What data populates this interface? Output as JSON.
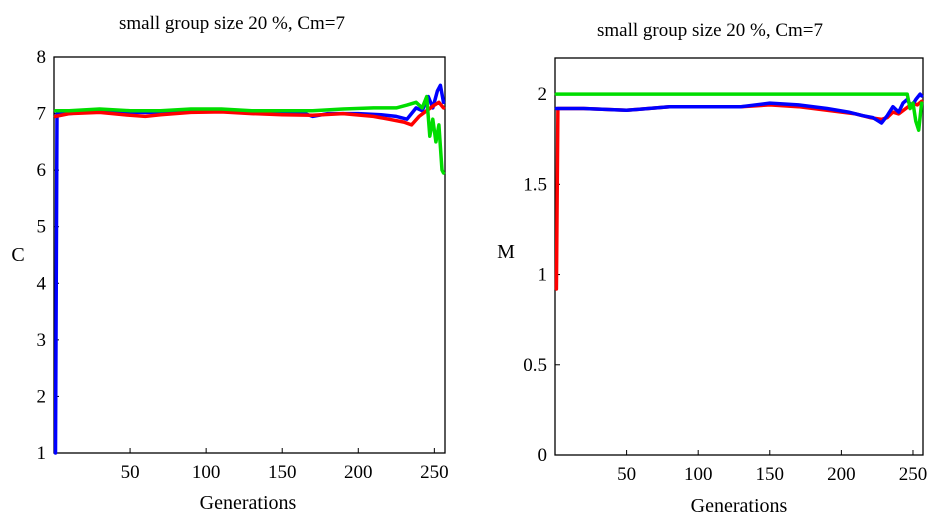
{
  "charts": [
    {
      "id": "C",
      "title": "small group size 20 %, Cm=7",
      "xlabel": "Generations",
      "ylabel": "C",
      "xticks": [
        "50",
        "100",
        "150",
        "200",
        "250"
      ],
      "yticks": [
        "1",
        "2",
        "3",
        "4",
        "5",
        "6",
        "7",
        "8"
      ]
    },
    {
      "id": "M",
      "title": "small group size 20 %, Cm=7",
      "xlabel": "Generations",
      "ylabel": "M",
      "xticks": [
        "50",
        "100",
        "150",
        "200",
        "250"
      ],
      "yticks": [
        "0",
        "0.5",
        "1",
        "1.5",
        "2"
      ]
    }
  ],
  "chart_data": [
    {
      "type": "line",
      "title": "small group size 20 %, Cm=7",
      "xlabel": "Generations",
      "ylabel": "C",
      "xlim": [
        0,
        257
      ],
      "ylim": [
        1,
        8
      ],
      "xticks": [
        50,
        100,
        150,
        200,
        250
      ],
      "yticks": [
        1,
        2,
        3,
        4,
        5,
        6,
        7,
        8
      ],
      "grid": false,
      "series": [
        {
          "color": "#0000ff",
          "points": [
            [
              1,
              1.0
            ],
            [
              2,
              7.0
            ],
            [
              10,
              7.0
            ],
            [
              30,
              7.05
            ],
            [
              50,
              7.02
            ],
            [
              70,
              7.02
            ],
            [
              90,
              7.05
            ],
            [
              110,
              7.05
            ],
            [
              130,
              7.02
            ],
            [
              150,
              7.0
            ],
            [
              165,
              7.0
            ],
            [
              170,
              6.95
            ],
            [
              180,
              7.0
            ],
            [
              200,
              7.0
            ],
            [
              215,
              6.98
            ],
            [
              225,
              6.95
            ],
            [
              232,
              6.9
            ],
            [
              238,
              7.1
            ],
            [
              242,
              7.05
            ],
            [
              246,
              7.3
            ],
            [
              249,
              7.1
            ],
            [
              252,
              7.4
            ],
            [
              254,
              7.5
            ],
            [
              256,
              7.2
            ]
          ]
        },
        {
          "color": "#ff0000",
          "points": [
            [
              1,
              6.95
            ],
            [
              10,
              7.0
            ],
            [
              30,
              7.02
            ],
            [
              50,
              6.97
            ],
            [
              60,
              6.95
            ],
            [
              70,
              6.98
            ],
            [
              90,
              7.02
            ],
            [
              110,
              7.03
            ],
            [
              130,
              7.0
            ],
            [
              150,
              6.98
            ],
            [
              170,
              6.97
            ],
            [
              190,
              7.0
            ],
            [
              210,
              6.95
            ],
            [
              220,
              6.9
            ],
            [
              230,
              6.85
            ],
            [
              235,
              6.8
            ],
            [
              240,
              6.95
            ],
            [
              245,
              7.05
            ],
            [
              250,
              7.15
            ],
            [
              253,
              7.2
            ],
            [
              256,
              7.1
            ]
          ]
        },
        {
          "color": "#00dd00",
          "points": [
            [
              1,
              7.05
            ],
            [
              10,
              7.05
            ],
            [
              30,
              7.08
            ],
            [
              50,
              7.05
            ],
            [
              70,
              7.05
            ],
            [
              90,
              7.08
            ],
            [
              110,
              7.08
            ],
            [
              130,
              7.05
            ],
            [
              150,
              7.05
            ],
            [
              170,
              7.05
            ],
            [
              190,
              7.08
            ],
            [
              210,
              7.1
            ],
            [
              225,
              7.1
            ],
            [
              232,
              7.15
            ],
            [
              238,
              7.2
            ],
            [
              242,
              7.1
            ],
            [
              245,
              7.3
            ],
            [
              247,
              6.6
            ],
            [
              249,
              6.9
            ],
            [
              251,
              6.5
            ],
            [
              253,
              6.8
            ],
            [
              255,
              6.0
            ],
            [
              256,
              5.95
            ]
          ]
        }
      ]
    },
    {
      "type": "line",
      "title": "small group size 20 %, Cm=7",
      "xlabel": "Generations",
      "ylabel": "M",
      "xlim": [
        0,
        257
      ],
      "ylim": [
        0,
        2.2
      ],
      "xticks": [
        50,
        100,
        150,
        200,
        250
      ],
      "yticks": [
        0,
        0.5,
        1,
        1.5,
        2
      ],
      "grid": false,
      "series": [
        {
          "color": "#ff0000",
          "points": [
            [
              1,
              0.92
            ],
            [
              2,
              1.92
            ],
            [
              20,
              1.92
            ],
            [
              50,
              1.91
            ],
            [
              80,
              1.93
            ],
            [
              110,
              1.93
            ],
            [
              130,
              1.93
            ],
            [
              150,
              1.94
            ],
            [
              170,
              1.93
            ],
            [
              190,
              1.91
            ],
            [
              210,
              1.89
            ],
            [
              220,
              1.87
            ],
            [
              228,
              1.86
            ],
            [
              232,
              1.87
            ],
            [
              236,
              1.9
            ],
            [
              240,
              1.89
            ],
            [
              245,
              1.92
            ],
            [
              250,
              1.95
            ],
            [
              253,
              1.94
            ],
            [
              256,
              1.96
            ]
          ]
        },
        {
          "color": "#0000ff",
          "points": [
            [
              1,
              1.92
            ],
            [
              20,
              1.92
            ],
            [
              50,
              1.91
            ],
            [
              80,
              1.93
            ],
            [
              110,
              1.93
            ],
            [
              130,
              1.93
            ],
            [
              150,
              1.95
            ],
            [
              170,
              1.94
            ],
            [
              190,
              1.92
            ],
            [
              205,
              1.9
            ],
            [
              215,
              1.88
            ],
            [
              222,
              1.87
            ],
            [
              226,
              1.85
            ],
            [
              228,
              1.84
            ],
            [
              232,
              1.88
            ],
            [
              236,
              1.93
            ],
            [
              240,
              1.9
            ],
            [
              243,
              1.95
            ],
            [
              246,
              1.97
            ],
            [
              249,
              1.93
            ],
            [
              252,
              1.97
            ],
            [
              255,
              2.0
            ],
            [
              256,
              1.99
            ]
          ]
        },
        {
          "color": "#00dd00",
          "points": [
            [
              1,
              2.0
            ],
            [
              50,
              2.0
            ],
            [
              100,
              2.0
            ],
            [
              150,
              2.0
            ],
            [
              200,
              2.0
            ],
            [
              240,
              2.0
            ],
            [
              246,
              2.0
            ],
            [
              248,
              1.92
            ],
            [
              250,
              1.95
            ],
            [
              252,
              1.85
            ],
            [
              254,
              1.8
            ],
            [
              256,
              1.95
            ]
          ]
        }
      ]
    }
  ]
}
